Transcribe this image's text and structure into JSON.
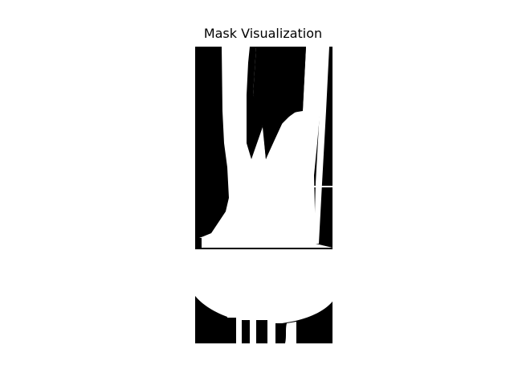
{
  "figure": {
    "title": "Mask Visualization"
  },
  "colors": {
    "background": "#ffffff",
    "mask_on": "#ffffff",
    "mask_off": "#000000",
    "text": "#000000"
  }
}
